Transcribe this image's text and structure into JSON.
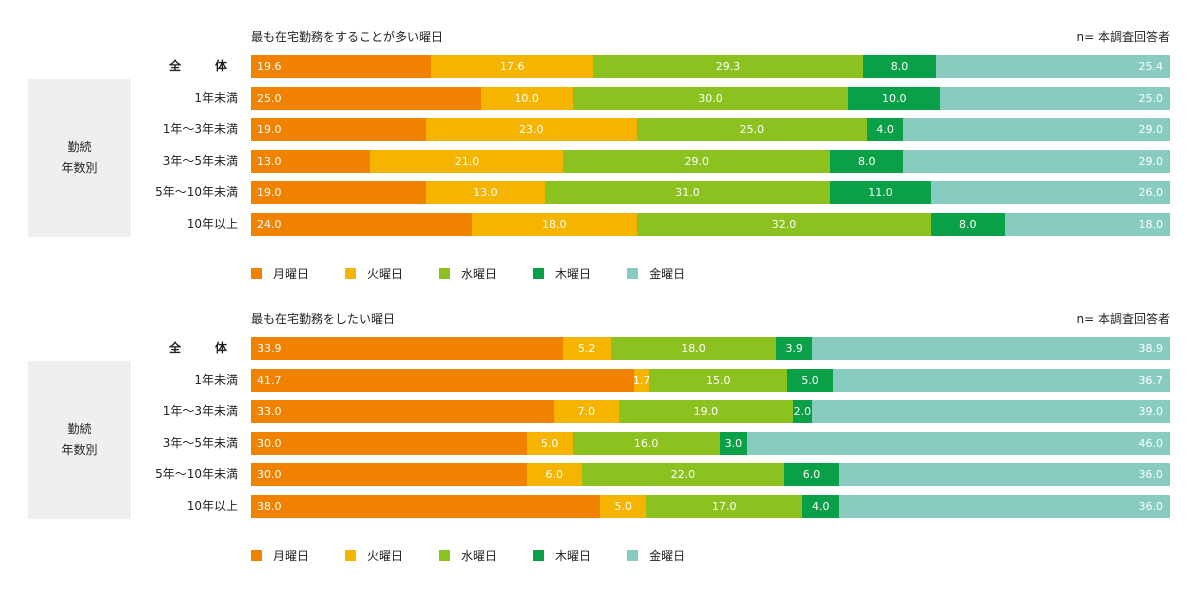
{
  "chart_data": [
    {
      "type": "bar",
      "orientation": "horizontal",
      "stacked": true,
      "title": "最も在宅勤務をすることが多い曜日",
      "note": "n= 本調査回答者",
      "group_label": "勤続\n年数別",
      "categories": [
        "全　体",
        "1年未満",
        "1年～3年未満",
        "3年～5年未満",
        "5年～10年未満",
        "10年以上"
      ],
      "series": [
        {
          "name": "月曜日",
          "color": "#f08200",
          "values": [
            19.6,
            25.0,
            19.0,
            13.0,
            19.0,
            24.0
          ]
        },
        {
          "name": "火曜日",
          "color": "#f5b400",
          "values": [
            17.6,
            10.0,
            23.0,
            21.0,
            13.0,
            18.0
          ]
        },
        {
          "name": "水曜日",
          "color": "#8cc220",
          "values": [
            29.3,
            30.0,
            25.0,
            29.0,
            31.0,
            32.0
          ]
        },
        {
          "name": "木曜日",
          "color": "#0aa048",
          "values": [
            8.0,
            10.0,
            4.0,
            8.0,
            11.0,
            8.0
          ]
        },
        {
          "name": "金曜日",
          "color": "#88ccc0",
          "values": [
            25.4,
            25.0,
            29.0,
            29.0,
            26.0,
            18.0
          ]
        }
      ]
    },
    {
      "type": "bar",
      "orientation": "horizontal",
      "stacked": true,
      "title": "最も在宅勤務をしたい曜日",
      "note": "n= 本調査回答者",
      "group_label": "勤続\n年数別",
      "categories": [
        "全　体",
        "1年未満",
        "1年～3年未満",
        "3年～5年未満",
        "5年～10年未満",
        "10年以上"
      ],
      "series": [
        {
          "name": "月曜日",
          "color": "#f08200",
          "values": [
            33.9,
            41.7,
            33.0,
            30.0,
            30.0,
            38.0
          ]
        },
        {
          "name": "火曜日",
          "color": "#f5b400",
          "values": [
            5.2,
            1.7,
            7.0,
            5.0,
            6.0,
            5.0
          ]
        },
        {
          "name": "水曜日",
          "color": "#8cc220",
          "values": [
            18.0,
            15.0,
            19.0,
            16.0,
            22.0,
            17.0
          ]
        },
        {
          "name": "木曜日",
          "color": "#0aa048",
          "values": [
            3.9,
            5.0,
            2.0,
            3.0,
            6.0,
            4.0
          ]
        },
        {
          "name": "金曜日",
          "color": "#88ccc0",
          "values": [
            38.9,
            36.7,
            39.0,
            46.0,
            36.0,
            36.0
          ]
        }
      ]
    }
  ]
}
